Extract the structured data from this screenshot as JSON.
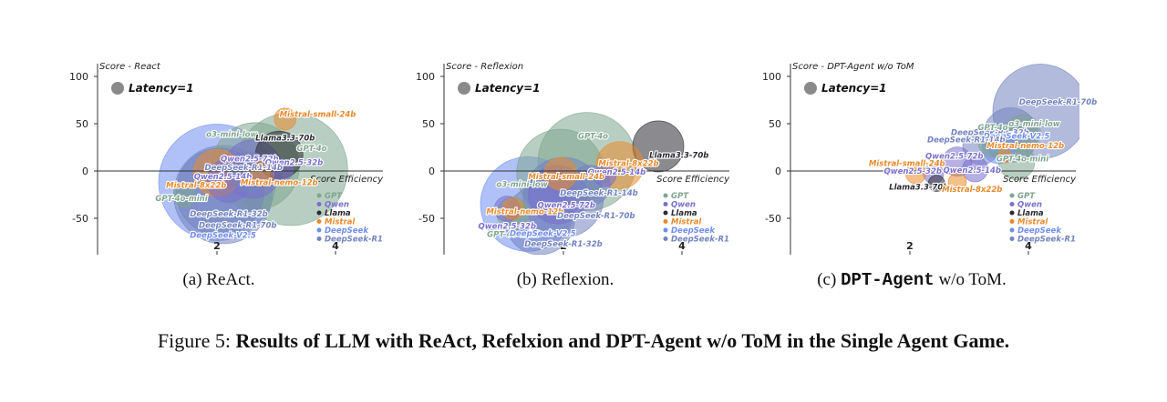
{
  "colors": {
    "GPT": "#7fa58f",
    "Qwen": "#7a6fcf",
    "Llama": "#2b2b33",
    "Mistral": "#e98a2b",
    "DeepSeek": "#6f8ef0",
    "DeepSeek-R1": "#7383bf"
  },
  "legend": [
    "GPT",
    "Qwen",
    "Llama",
    "Mistral",
    "DeepSeek",
    "DeepSeek-R1"
  ],
  "latency_label": "Latency=1",
  "xticks": [
    "2",
    "4"
  ],
  "yticks": [
    "100",
    "50",
    "0",
    "-50"
  ],
  "captions": [
    {
      "prefix": "(a)",
      "text": "ReAct.",
      "mono": ""
    },
    {
      "prefix": "(b)",
      "text": "Reflexion.",
      "mono": ""
    },
    {
      "prefix": "(c)",
      "text": " w/o ToM.",
      "mono": "DPT-Agent"
    }
  ],
  "figure_caption": {
    "prefix": "Figure 5: ",
    "bold": "Results of LLM with ReAct, Refelxion and DPT-Agent w/o ToM in the Single Agent Game."
  },
  "chart_data": [
    {
      "type": "scatter",
      "ylabel": "Score - React",
      "xlabel": "Score Efficiency",
      "xlim": [
        0.9,
        5.1
      ],
      "ylim": [
        -85,
        110
      ],
      "points": [
        {
          "name": "GPT-4o-mini",
          "family": "GPT",
          "x": 1.45,
          "y": -27,
          "r": 0.6
        },
        {
          "name": "GPT-4o",
          "family": "GPT",
          "x": 3.25,
          "y": 2,
          "r": 3.1
        },
        {
          "name": "o3-mini-low",
          "family": "GPT",
          "x": 2.65,
          "y": 5,
          "r": 2.4
        },
        {
          "name": "Qwen2.5-72b",
          "family": "Qwen",
          "x": 2.6,
          "y": 2,
          "r": 1.6
        },
        {
          "name": "Qwen2.5-14b",
          "family": "Qwen",
          "x": 2.2,
          "y": -10,
          "r": 1.2
        },
        {
          "name": "Qwen2.5-32b",
          "family": "Qwen",
          "x": 3.1,
          "y": 1,
          "r": 0.6
        },
        {
          "name": "Llama3.3-70b",
          "family": "Llama",
          "x": 3.05,
          "y": 17,
          "r": 1.3
        },
        {
          "name": "Mistral-small-24b",
          "family": "Mistral",
          "x": 3.15,
          "y": 55,
          "r": 0.6
        },
        {
          "name": "Mistral-8x22b",
          "family": "Mistral",
          "x": 2.0,
          "y": -2,
          "r": 1.3
        },
        {
          "name": "Mistral-nemo-12b",
          "family": "Mistral",
          "x": 2.75,
          "y": -3,
          "r": 0.7
        },
        {
          "name": "DeepSeek-V2.5",
          "family": "DeepSeek",
          "x": 2.0,
          "y": -12,
          "r": 3.2
        },
        {
          "name": "DeepSeek-R1-14b",
          "family": "DeepSeek-R1",
          "x": 2.55,
          "y": -1,
          "r": 1.1
        },
        {
          "name": "DeepSeek-R1-32b",
          "family": "DeepSeek-R1",
          "x": 2.05,
          "y": -22,
          "r": 2.4
        },
        {
          "name": "DeepSeek-R1-70b",
          "family": "DeepSeek-R1",
          "x": 2.1,
          "y": -25,
          "r": 2.7
        }
      ],
      "labels": [
        {
          "text": "GPT-4o-mini",
          "family": "GPT",
          "x": 1.4,
          "y": -29
        },
        {
          "text": "GPT-4o",
          "family": "GPT",
          "x": 3.6,
          "y": 24
        },
        {
          "text": "o3-mini-low",
          "family": "GPT",
          "x": 2.25,
          "y": 39
        },
        {
          "text": "Qwen2.5-72b",
          "family": "Qwen",
          "x": 2.55,
          "y": 13
        },
        {
          "text": "Qwen2.5-14b",
          "family": "Qwen",
          "x": 2.1,
          "y": -6
        },
        {
          "text": "Qwen2.5-32b",
          "family": "Qwen",
          "x": 3.3,
          "y": 9
        },
        {
          "text": "Llama3.3-70b",
          "family": "Llama",
          "x": 3.15,
          "y": 35
        },
        {
          "text": "Mistral-small-24b",
          "family": "Mistral",
          "x": 3.7,
          "y": 60
        },
        {
          "text": "Mistral-8x22b",
          "family": "Mistral",
          "x": 1.65,
          "y": -15
        },
        {
          "text": "Mistral-nemo-12b",
          "family": "Mistral",
          "x": 3.05,
          "y": -12
        },
        {
          "text": "DeepSeek-R1-14b",
          "family": "DeepSeek-R1",
          "x": 2.45,
          "y": 4
        },
        {
          "text": "DeepSeek-R1-32b",
          "family": "DeepSeek-R1",
          "x": 2.2,
          "y": -45
        },
        {
          "text": "DeepSeek-R1-70b",
          "family": "DeepSeek-R1",
          "x": 2.35,
          "y": -57
        },
        {
          "text": "DeepSeek-V2.5",
          "family": "DeepSeek",
          "x": 2.1,
          "y": -68
        }
      ]
    },
    {
      "type": "scatter",
      "ylabel": "Score - Reflexion",
      "xlabel": "Score Efficiency",
      "xlim": [
        0.9,
        5.1
      ],
      "ylim": [
        -85,
        110
      ],
      "points": [
        {
          "name": "GPT-4o-mini",
          "family": "GPT",
          "x": 1.15,
          "y": -45,
          "r": 0.9
        },
        {
          "name": "GPT-4o",
          "family": "GPT",
          "x": 2.4,
          "y": 10,
          "r": 2.7
        },
        {
          "name": "o3-mini-low",
          "family": "GPT",
          "x": 1.95,
          "y": -2,
          "r": 2.4
        },
        {
          "name": "Qwen2.5-72b",
          "family": "Qwen",
          "x": 1.9,
          "y": -25,
          "r": 1.6
        },
        {
          "name": "Qwen2.5-32b",
          "family": "Qwen",
          "x": 1.05,
          "y": -40,
          "r": 0.7
        },
        {
          "name": "Qwen2.5-14b",
          "family": "Qwen",
          "x": 2.7,
          "y": -5,
          "r": 0.6
        },
        {
          "name": "Llama3.3-70b",
          "family": "Llama",
          "x": 3.6,
          "y": 26,
          "r": 1.4
        },
        {
          "name": "Mistral-small-24b",
          "family": "Mistral",
          "x": 1.95,
          "y": -3,
          "r": 0.9
        },
        {
          "name": "Mistral-8x22b",
          "family": "Mistral",
          "x": 2.95,
          "y": 6,
          "r": 1.3
        },
        {
          "name": "Mistral-nemo-12b",
          "family": "Mistral",
          "x": 1.15,
          "y": -40,
          "r": 0.6
        },
        {
          "name": "DeepSeek-V2.5",
          "family": "DeepSeek",
          "x": 1.4,
          "y": -35,
          "r": 2.6
        },
        {
          "name": "DeepSeek-R1-14b",
          "family": "DeepSeek-R1",
          "x": 2.45,
          "y": -15,
          "r": 1.1
        },
        {
          "name": "DeepSeek-R1-32b",
          "family": "DeepSeek-R1",
          "x": 1.6,
          "y": -52,
          "r": 1.9
        },
        {
          "name": "DeepSeek-R1-70b",
          "family": "DeepSeek-R1",
          "x": 2.0,
          "y": -28,
          "r": 2.2
        }
      ],
      "labels": [
        {
          "text": "o3-mini-low",
          "family": "GPT",
          "x": 1.3,
          "y": -14
        },
        {
          "text": "GPT-4o",
          "family": "GPT",
          "x": 2.5,
          "y": 37
        },
        {
          "text": "GPT-4o-mini",
          "family": "GPT",
          "x": 1.15,
          "y": -67
        },
        {
          "text": "Qwen2.5-72b",
          "family": "Qwen",
          "x": 2.05,
          "y": -36
        },
        {
          "text": "Qwen2.5-32b",
          "family": "Qwen",
          "x": 1.05,
          "y": -58
        },
        {
          "text": "Qwen2.5-14b",
          "family": "Qwen",
          "x": 2.9,
          "y": -1
        },
        {
          "text": "Llama3.3-70b",
          "family": "Llama",
          "x": 3.95,
          "y": 17
        },
        {
          "text": "Mistral-small-24b",
          "family": "Mistral",
          "x": 2.05,
          "y": -6
        },
        {
          "text": "Mistral-8x22b",
          "family": "Mistral",
          "x": 3.1,
          "y": 8
        },
        {
          "text": "Mistral-nemo-12b",
          "family": "Mistral",
          "x": 1.35,
          "y": -43
        },
        {
          "text": "DeepSeek-R1-14b",
          "family": "DeepSeek-R1",
          "x": 2.6,
          "y": -23
        },
        {
          "text": "DeepSeek-R1-70b",
          "family": "DeepSeek-R1",
          "x": 2.55,
          "y": -47
        },
        {
          "text": "DeepSeek-V2.5",
          "family": "DeepSeek",
          "x": 1.65,
          "y": -66
        },
        {
          "text": "DeepSeek-R1-32b",
          "family": "DeepSeek-R1",
          "x": 2.0,
          "y": -77
        }
      ]
    },
    {
      "type": "scatter",
      "ylabel": "Score - DPT-Agent w/o ToM",
      "xlabel": "Score Efficiency",
      "xlim": [
        0.9,
        5.1
      ],
      "ylim": [
        -85,
        110
      ],
      "points": [
        {
          "name": "DeepSeek-R1-70b",
          "family": "DeepSeek-R1",
          "x": 4.2,
          "y": 63,
          "r": 2.6
        },
        {
          "name": "DeepSeek-R1-32b",
          "family": "DeepSeek-R1",
          "x": 3.7,
          "y": 38,
          "r": 1.5
        },
        {
          "name": "o3-mini-low",
          "family": "GPT",
          "x": 3.9,
          "y": 40,
          "r": 1.0
        },
        {
          "name": "GPT-4o",
          "family": "GPT",
          "x": 3.4,
          "y": 30,
          "r": 0.8
        },
        {
          "name": "GPT-4o-mini",
          "family": "GPT",
          "x": 3.8,
          "y": 10,
          "r": 1.0
        },
        {
          "name": "DeepSeek-V2.5",
          "family": "DeepSeek",
          "x": 3.5,
          "y": 25,
          "r": 0.9
        },
        {
          "name": "DeepSeek-R1-14b",
          "family": "DeepSeek-R1",
          "x": 3.2,
          "y": 26,
          "r": 1.0
        },
        {
          "name": "Mistral-nemo-12b",
          "family": "Mistral",
          "x": 3.6,
          "y": 16,
          "r": 0.4
        },
        {
          "name": "Qwen2.5-72b",
          "family": "Qwen",
          "x": 2.8,
          "y": 10,
          "r": 0.8
        },
        {
          "name": "Qwen2.5-14b",
          "family": "Qwen",
          "x": 3.1,
          "y": 2,
          "r": 0.7
        },
        {
          "name": "Qwen2.5-32b",
          "family": "Qwen",
          "x": 2.4,
          "y": -3,
          "r": 0.55
        },
        {
          "name": "Mistral-small-24b",
          "family": "Mistral",
          "x": 2.1,
          "y": -3,
          "r": 0.55
        },
        {
          "name": "Llama3.3-70b",
          "family": "Llama",
          "x": 2.45,
          "y": -13,
          "r": 0.45
        },
        {
          "name": "Mistral-8x22b",
          "family": "Mistral",
          "x": 2.8,
          "y": -12,
          "r": 0.5
        }
      ],
      "labels": [
        {
          "text": "DeepSeek-R1-70b",
          "family": "DeepSeek-R1",
          "x": 4.5,
          "y": 73
        },
        {
          "text": "DeepSeek-R1-32b",
          "family": "DeepSeek-R1",
          "x": 3.35,
          "y": 41
        },
        {
          "text": "o3-mini-low",
          "family": "GPT",
          "x": 4.1,
          "y": 50
        },
        {
          "text": "GPT-4o",
          "family": "GPT",
          "x": 3.4,
          "y": 46
        },
        {
          "text": "DeepSeek-V2.5",
          "family": "DeepSeek",
          "x": 3.8,
          "y": 37
        },
        {
          "text": "DeepSeek-R1-14b",
          "family": "DeepSeek-R1",
          "x": 2.95,
          "y": 33
        },
        {
          "text": "Mistral-nemo-12b",
          "family": "Mistral",
          "x": 3.95,
          "y": 27
        },
        {
          "text": "GPT-4o-mini",
          "family": "GPT",
          "x": 3.9,
          "y": 13
        },
        {
          "text": "Qwen2.5-72b",
          "family": "Qwen",
          "x": 2.75,
          "y": 16
        },
        {
          "text": "Qwen2.5-14b",
          "family": "Qwen",
          "x": 3.05,
          "y": 1
        },
        {
          "text": "Qwen2.5-32b",
          "family": "Qwen",
          "x": 2.05,
          "y": 0
        },
        {
          "text": "Mistral-small-24b",
          "family": "Mistral",
          "x": 1.95,
          "y": 8
        },
        {
          "text": "Llama3.3-70b",
          "family": "Llama",
          "x": 2.15,
          "y": -17
        },
        {
          "text": "Mistral-8x22b",
          "family": "Mistral",
          "x": 3.05,
          "y": -19
        }
      ]
    }
  ]
}
